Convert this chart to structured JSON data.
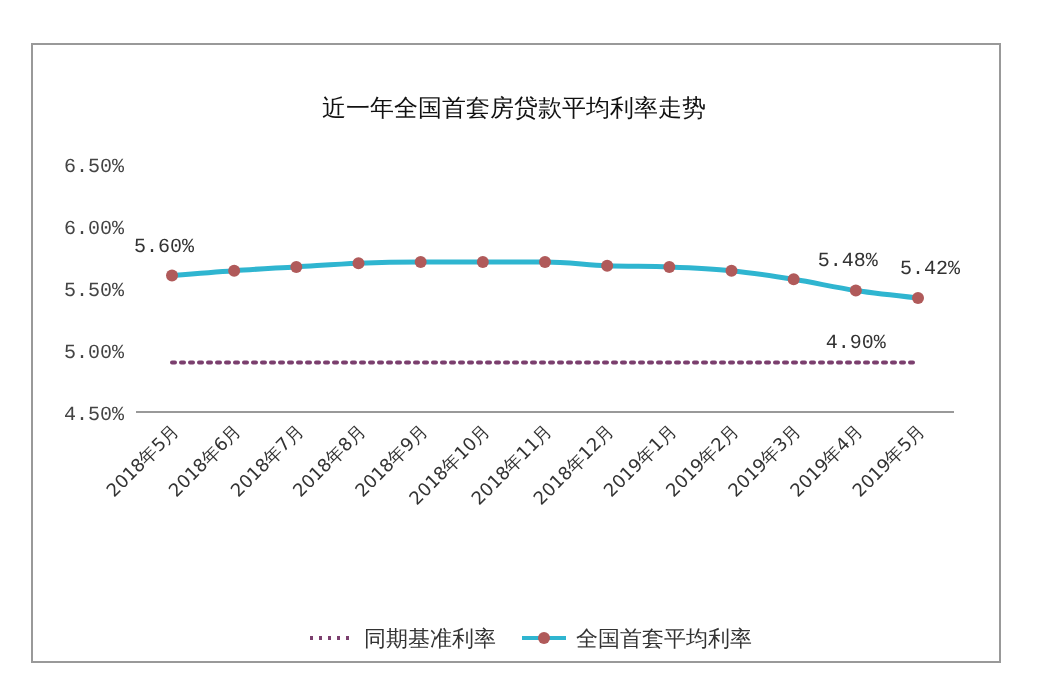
{
  "chart_data": {
    "type": "line",
    "title": "近一年全国首套房贷款平均利率走势",
    "categories": [
      "2018年5月",
      "2018年6月",
      "2018年7月",
      "2018年8月",
      "2018年9月",
      "2018年10月",
      "2018年11月",
      "2018年12月",
      "2019年1月",
      "2019年2月",
      "2019年3月",
      "2019年4月",
      "2019年5月"
    ],
    "series": [
      {
        "name": "同期基准利率",
        "color": "#7b3f6e",
        "line_style": "dotted",
        "marker": "none",
        "values": [
          4.9,
          4.9,
          4.9,
          4.9,
          4.9,
          4.9,
          4.9,
          4.9,
          4.9,
          4.9,
          4.9,
          4.9,
          4.9
        ],
        "value_labels": [
          null,
          null,
          null,
          null,
          null,
          null,
          null,
          null,
          null,
          null,
          null,
          "4.90%",
          null
        ]
      },
      {
        "name": "全国首套平均利率",
        "color": "#2fb5d0",
        "line_style": "solid",
        "marker": "circle",
        "values": [
          5.6,
          5.64,
          5.67,
          5.7,
          5.71,
          5.71,
          5.71,
          5.68,
          5.67,
          5.64,
          5.57,
          5.48,
          5.42
        ],
        "value_labels": [
          "5.60%",
          null,
          null,
          null,
          null,
          null,
          null,
          null,
          null,
          null,
          null,
          "5.48%",
          "5.42%"
        ]
      }
    ],
    "ylim": [
      4.5,
      6.5
    ],
    "yticks": [
      {
        "value": 4.5,
        "label": "4.50%"
      },
      {
        "value": 5,
        "label": "5.00%"
      },
      {
        "value": 5.5,
        "label": "5.50%"
      },
      {
        "value": 6,
        "label": "6.00%"
      },
      {
        "value": 6.5,
        "label": "6.50%"
      }
    ],
    "grid": false,
    "legend": "bottom"
  }
}
